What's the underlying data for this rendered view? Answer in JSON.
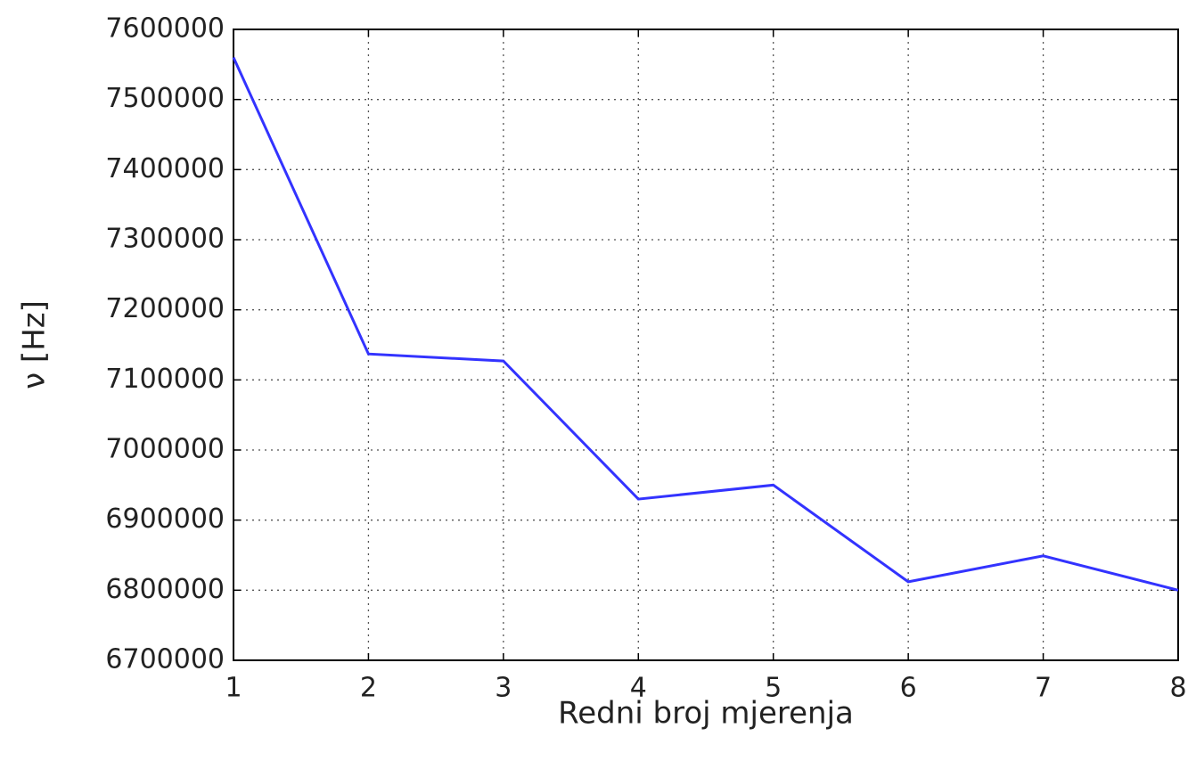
{
  "chart_data": {
    "type": "line",
    "x_label": "Redni broj mjerenja",
    "y_label": "ν [Hz]",
    "x": [
      1,
      2,
      3,
      4,
      5,
      6,
      7,
      8
    ],
    "series": [
      {
        "color": "#3333ff",
        "values": [
          7560000,
          7137000,
          7127000,
          6930000,
          6950000,
          6812000,
          6849000,
          6800000
        ]
      }
    ],
    "xlim": [
      1,
      8
    ],
    "xticks": [
      1,
      2,
      3,
      4,
      5,
      6,
      7,
      8
    ],
    "ylim": [
      6700000,
      7600000
    ],
    "yticks": [
      6700000,
      6800000,
      6900000,
      7000000,
      7100000,
      7200000,
      7300000,
      7400000,
      7500000,
      7600000
    ],
    "grid": true
  }
}
